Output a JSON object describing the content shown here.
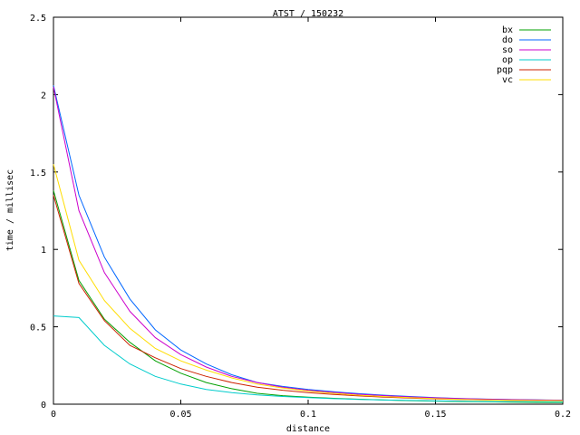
{
  "chart_data": {
    "type": "line",
    "title": "ATST / 150232",
    "xlabel": "distance",
    "ylabel": "time / millisec",
    "xlim": [
      0,
      0.2
    ],
    "ylim": [
      0,
      2.5
    ],
    "xticks": [
      0,
      0.05,
      0.1,
      0.15,
      0.2
    ],
    "xtick_labels": [
      "0",
      "0.05",
      "0.1",
      "0.15",
      "0.2"
    ],
    "yticks": [
      0,
      0.5,
      1,
      1.5,
      2,
      2.5
    ],
    "ytick_labels": [
      "0",
      "0.5",
      "1",
      "1.5",
      "2",
      "2.5"
    ],
    "grid": false,
    "legend_position": "top-right",
    "x": [
      0,
      0.01,
      0.02,
      0.03,
      0.04,
      0.05,
      0.06,
      0.07,
      0.08,
      0.09,
      0.1,
      0.11,
      0.12,
      0.13,
      0.14,
      0.15,
      0.16,
      0.17,
      0.18,
      0.19,
      0.2
    ],
    "series": [
      {
        "name": "bx",
        "color": "#00a000",
        "values": [
          1.38,
          0.8,
          0.55,
          0.4,
          0.28,
          0.2,
          0.14,
          0.1,
          0.07,
          0.055,
          0.045,
          0.038,
          0.032,
          0.027,
          0.023,
          0.02,
          0.017,
          0.015,
          0.013,
          0.012,
          0.011
        ]
      },
      {
        "name": "do",
        "color": "#0066ff",
        "values": [
          2.06,
          1.35,
          0.95,
          0.68,
          0.48,
          0.35,
          0.26,
          0.19,
          0.14,
          0.115,
          0.095,
          0.08,
          0.068,
          0.058,
          0.05,
          0.043,
          0.037,
          0.033,
          0.03,
          0.028,
          0.026
        ]
      },
      {
        "name": "so",
        "color": "#cc00cc",
        "values": [
          2.05,
          1.25,
          0.85,
          0.6,
          0.43,
          0.32,
          0.24,
          0.18,
          0.14,
          0.11,
          0.09,
          0.076,
          0.064,
          0.055,
          0.047,
          0.041,
          0.036,
          0.032,
          0.029,
          0.027,
          0.025
        ]
      },
      {
        "name": "op",
        "color": "#00cccc",
        "values": [
          0.57,
          0.56,
          0.38,
          0.26,
          0.18,
          0.13,
          0.095,
          0.075,
          0.06,
          0.05,
          0.042,
          0.036,
          0.031,
          0.027,
          0.024,
          0.021,
          0.019,
          0.017,
          0.016,
          0.015,
          0.014
        ]
      },
      {
        "name": "pqp",
        "color": "#cc2200",
        "values": [
          1.35,
          0.78,
          0.54,
          0.38,
          0.3,
          0.23,
          0.18,
          0.14,
          0.11,
          0.09,
          0.075,
          0.063,
          0.053,
          0.045,
          0.039,
          0.034,
          0.03,
          0.027,
          0.025,
          0.024,
          0.023
        ]
      },
      {
        "name": "vc",
        "color": "#ffdd00",
        "values": [
          1.55,
          0.93,
          0.67,
          0.49,
          0.36,
          0.28,
          0.22,
          0.17,
          0.13,
          0.105,
          0.085,
          0.07,
          0.058,
          0.049,
          0.042,
          0.036,
          0.031,
          0.028,
          0.025,
          0.023,
          0.022
        ]
      }
    ]
  }
}
